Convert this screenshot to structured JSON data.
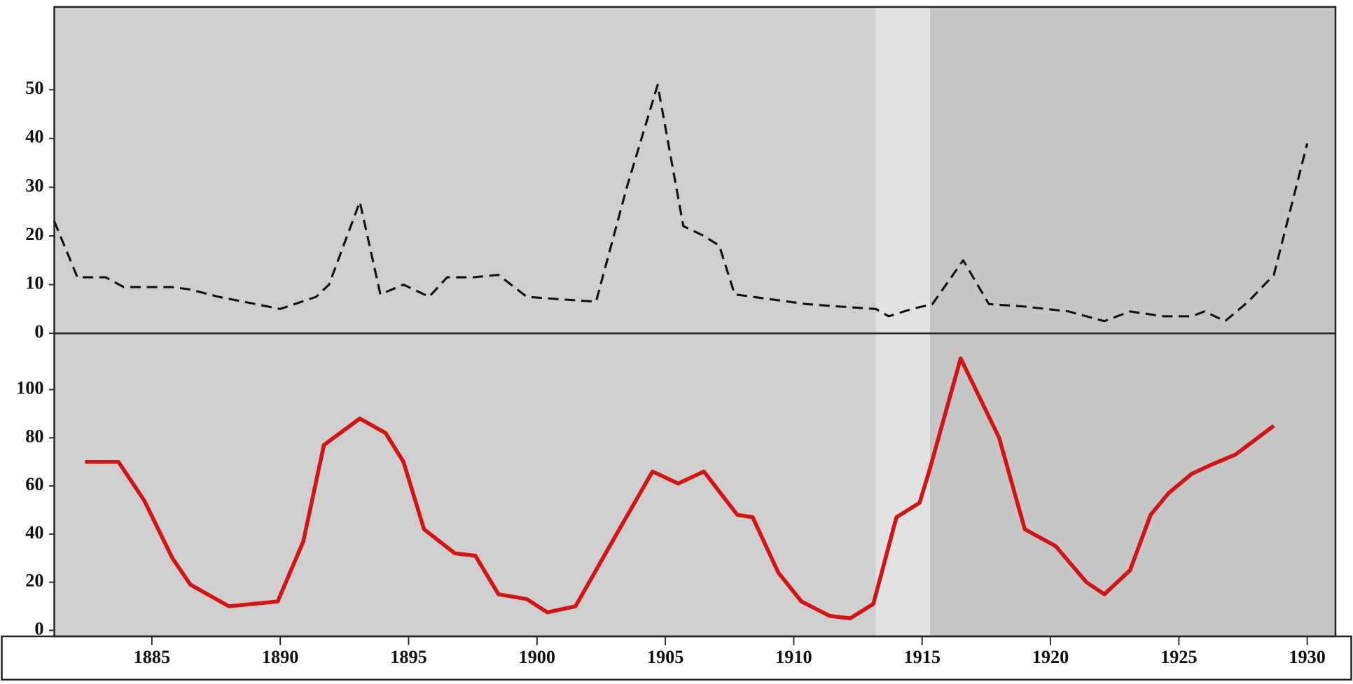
{
  "chart_data": [
    {
      "type": "line",
      "dash": true,
      "xlim": [
        1881.2,
        1931.1
      ],
      "ylim": [
        0,
        67
      ],
      "yticks": [
        0,
        10,
        20,
        30,
        40,
        50
      ],
      "series": [
        {
          "color": "#111111",
          "x": [
            1881.2,
            1882.1,
            1883.2,
            1883.9,
            1885.8,
            1886.5,
            1887.6,
            1890,
            1891.4,
            1891.9,
            1893.1,
            1893.9,
            1894.8,
            1895.8,
            1896.5,
            1897.5,
            1898.5,
            1899.6,
            1900.9,
            1902.3,
            1903.5,
            1904.7,
            1905.7,
            1906.5,
            1907.1,
            1907.7,
            1909.1,
            1910.5,
            1911.8,
            1913.2,
            1913.7,
            1914.6,
            1915.4,
            1916.6,
            1917.6,
            1919,
            1920.7,
            1922.1,
            1923.1,
            1924.4,
            1925.5,
            1926,
            1926.8,
            1927.7,
            1928.7,
            1930
          ],
          "values": [
            23,
            11.5,
            11.5,
            9.5,
            9.5,
            9,
            7.5,
            5,
            7.5,
            10,
            27,
            8,
            10,
            7.5,
            11.5,
            11.5,
            12,
            7.5,
            7,
            6.5,
            30,
            51,
            22,
            20,
            18,
            8,
            7,
            6,
            5.5,
            5,
            3.5,
            5,
            6,
            15,
            6,
            5.5,
            4.5,
            2.5,
            4.5,
            3.5,
            3.5,
            4.5,
            2.5,
            6.5,
            12,
            39
          ]
        }
      ]
    },
    {
      "type": "line",
      "dash": false,
      "xlim": [
        1881.2,
        1931.1
      ],
      "ylim": [
        -2.5,
        123.4
      ],
      "yticks": [
        0,
        20,
        40,
        60,
        80,
        100
      ],
      "xticks": [
        1885,
        1890,
        1895,
        1900,
        1905,
        1910,
        1915,
        1920,
        1925,
        1930
      ],
      "series": [
        {
          "color": "#d41414",
          "x": [
            1882.4,
            1883.7,
            1884.7,
            1885.8,
            1886.5,
            1888,
            1889.9,
            1890.9,
            1891.7,
            1893.1,
            1894.1,
            1894.8,
            1895.6,
            1896.8,
            1897.6,
            1898.5,
            1899.6,
            1900.4,
            1901.5,
            1903.1,
            1904.5,
            1905.5,
            1906.5,
            1907.8,
            1908.4,
            1909.4,
            1910.3,
            1911.4,
            1912.2,
            1913.1,
            1914,
            1914.9,
            1915.3,
            1916.5,
            1918,
            1919,
            1920.2,
            1921.4,
            1922.1,
            1923.1,
            1923.9,
            1924.6,
            1925.5,
            1926.3,
            1927.2,
            1928.7
          ],
          "values": [
            70,
            70,
            54,
            30,
            19,
            10,
            12,
            37,
            77,
            88,
            82,
            70,
            42,
            32,
            31,
            15,
            13,
            7.5,
            10,
            40,
            66,
            61,
            66,
            48,
            47,
            24,
            12,
            6,
            5,
            11,
            47,
            53,
            67,
            113,
            80,
            42,
            35,
            20,
            15,
            25,
            48,
            57,
            65,
            69,
            73,
            85
          ]
        }
      ]
    }
  ]
}
